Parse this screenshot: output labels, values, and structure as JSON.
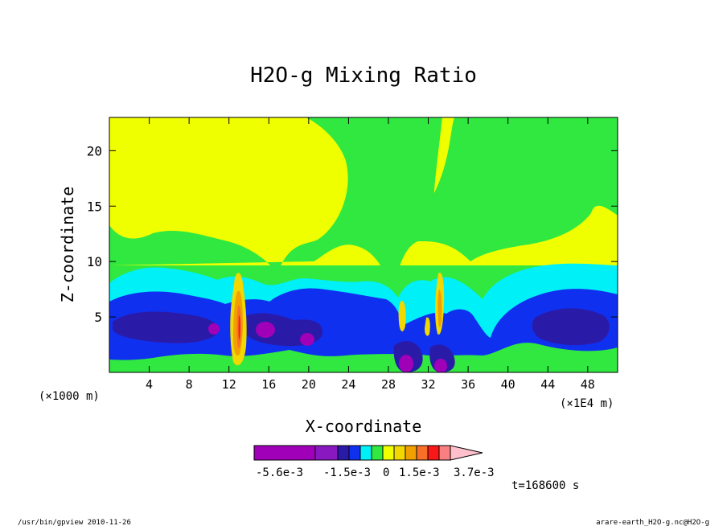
{
  "chart_data": {
    "type": "contour",
    "title": "H2O-g Mixing Ratio",
    "xlabel": "X-coordinate",
    "ylabel": "Z-coordinate",
    "x_unit_left": "(×1000 m)",
    "x_unit_right": "(×1E4 m)",
    "x_ticks": [
      4,
      8,
      12,
      16,
      20,
      24,
      28,
      32,
      36,
      40,
      44,
      48
    ],
    "y_ticks": [
      5,
      10,
      15,
      20
    ],
    "xlim": [
      0,
      51
    ],
    "ylim": [
      0,
      23
    ],
    "colorbar": {
      "labels": [
        "-5.6e-3",
        "-1.5e-3",
        "0",
        "1.5e-3",
        "3.7e-3"
      ],
      "colors": [
        "#a000b8",
        "#8a18c0",
        "#2a1aa8",
        "#1030f0",
        "#00f0f8",
        "#30e840",
        "#f0ff00",
        "#f0d800",
        "#f0a000",
        "#f87028",
        "#f81818",
        "#f88080",
        "#ffc0cc"
      ]
    },
    "time_label": "t=168600 s"
  },
  "footer": {
    "left": "/usr/bin/gpview   2010-11-26",
    "right": "arare-earth_H2O-g.nc@H2O-g"
  }
}
